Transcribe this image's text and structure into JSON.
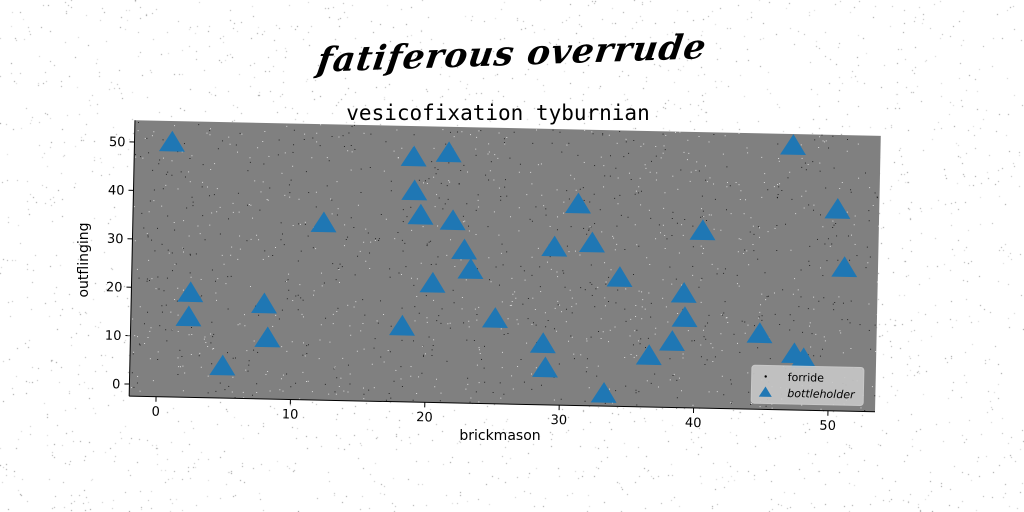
{
  "suptitle": "fatiferous overrude",
  "chart_data": {
    "type": "scatter",
    "title": "vesicofixation tyburnian",
    "xlabel": "brickmason",
    "ylabel": "outflinging",
    "xlim": [
      -2,
      53.5
    ],
    "ylim": [
      -2.5,
      54.5
    ],
    "xticks": [
      0,
      10,
      20,
      30,
      40,
      50
    ],
    "yticks": [
      0,
      10,
      20,
      30,
      40,
      50
    ],
    "grid": false,
    "legend_position": "bottom-right",
    "background": "#808080",
    "series": [
      {
        "name": "forride",
        "marker": "point",
        "color": "#000000",
        "x": [],
        "y": []
      },
      {
        "name": "bottleholder",
        "marker": "triangle",
        "color": "#1f77b4",
        "x": [
          0.8,
          2.4,
          2.3,
          4.9,
          7.9,
          8.2,
          12.2,
          18.2,
          18.8,
          18.9,
          19.4,
          20.4,
          21.4,
          21.8,
          22.7,
          23.2,
          25.1,
          28.7,
          28.9,
          29.4,
          31.1,
          32.2,
          33.3,
          34.3,
          36.6,
          38.3,
          39.1,
          39.2,
          40.4,
          44.8,
          47.0,
          47.4,
          48.1,
          50.4,
          51.0
        ],
        "y": [
          50,
          19,
          14,
          4,
          17,
          10,
          34,
          13,
          48,
          41,
          36,
          22,
          49,
          35,
          29,
          25,
          15,
          10,
          5,
          30,
          39,
          31,
          0,
          24,
          8,
          11,
          21,
          16,
          34,
          13,
          52,
          9,
          8,
          39,
          27
        ]
      }
    ]
  }
}
